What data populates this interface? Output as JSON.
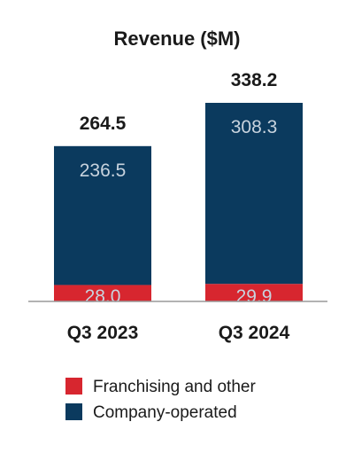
{
  "chart_data": {
    "type": "bar",
    "stacked": true,
    "title": "Revenue ($M)",
    "categories": [
      "Q3 2023",
      "Q3 2024"
    ],
    "series": [
      {
        "name": "Franchising and other",
        "values": [
          28.0,
          29.9
        ],
        "labels": [
          "28.0",
          "29.9"
        ],
        "color": "#d7262f"
      },
      {
        "name": "Company-operated",
        "values": [
          236.5,
          308.3
        ],
        "labels": [
          "236.5",
          "308.3"
        ],
        "color": "#0b3a5e"
      }
    ],
    "totals": [
      "264.5",
      "338.2"
    ],
    "xlabel": "",
    "ylabel": "",
    "ylim": [
      0,
      338.2
    ],
    "grid": false,
    "legend": "bottom"
  }
}
